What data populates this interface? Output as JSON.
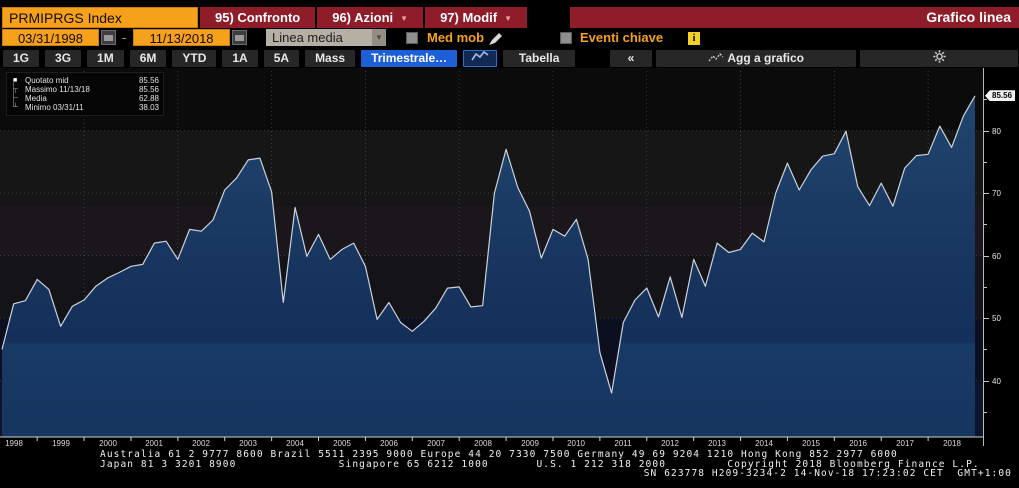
{
  "titlebar": {
    "security": "PRMIPRGS Index",
    "menu_buttons": [
      {
        "label": "95) Confronto",
        "caret": false
      },
      {
        "label": "96) Azioni",
        "caret": true
      },
      {
        "label": "97) Modif",
        "caret": true
      }
    ],
    "view_title": "Grafico linea"
  },
  "controls": {
    "date_from": "03/31/1998",
    "date_to": "11/13/2018",
    "separator": "-",
    "line_type_dropdown": "Linea media",
    "dropdown_caret": "▼",
    "med_mob_label": "Med mob",
    "eventi_label": "Eventi chiave",
    "info_glyph": "i"
  },
  "toolbar": {
    "period_tabs": [
      "1G",
      "3G",
      "1M",
      "6M",
      "YTD",
      "1A",
      "5A",
      "Mass"
    ],
    "frequency_tab": "Trimestrale…",
    "tabella_label": "Tabella",
    "collapse_label": "«",
    "agg_label": "Agg a grafico"
  },
  "legend": {
    "rows": [
      {
        "marker": "■",
        "label": "Quotato mid",
        "value": "85.56"
      },
      {
        "marker": "┬",
        "label": "Massimo 11/13/18",
        "value": "85.56"
      },
      {
        "marker": "─",
        "label": "Media",
        "value": "62.88"
      },
      {
        "marker": "┴",
        "label": "Minimo 03/31/11",
        "value": "38.03"
      }
    ]
  },
  "chart_data": {
    "type": "area",
    "title": "PRMIPRGS Index",
    "frequency": "quarterly",
    "start": "03/31/1998",
    "end": "11/13/2018",
    "values": [
      45.0,
      52.3,
      52.8,
      56.2,
      54.6,
      48.7,
      51.9,
      52.9,
      55.1,
      56.4,
      57.3,
      58.3,
      58.6,
      62.0,
      62.3,
      59.4,
      64.2,
      63.9,
      65.7,
      70.5,
      72.4,
      75.3,
      75.6,
      70.2,
      52.5,
      67.7,
      59.9,
      63.4,
      59.4,
      61.0,
      62.0,
      58.3,
      49.8,
      52.5,
      49.3,
      47.9,
      49.5,
      51.6,
      54.8,
      55.0,
      51.8,
      52.0,
      70.0,
      77.0,
      70.9,
      67.1,
      59.6,
      64.2,
      63.1,
      65.8,
      59.4,
      44.5,
      38.03,
      49.3,
      52.9,
      54.8,
      50.2,
      56.6,
      50.1,
      59.4,
      55.1,
      62.0,
      60.5,
      61.0,
      63.6,
      62.2,
      70.0,
      74.8,
      70.5,
      73.7,
      75.9,
      76.3,
      79.9,
      71.0,
      68.0,
      71.6,
      67.9,
      74.0,
      76.0,
      76.2,
      80.7,
      77.3,
      82.3,
      85.56
    ],
    "ylim": [
      31,
      90
    ],
    "yticks": [
      40,
      50,
      60,
      70,
      80
    ],
    "yticks_minor": [
      35,
      45,
      55,
      65,
      75,
      85
    ],
    "start_year": 1998,
    "x_year_labels": [
      "1998",
      "1999",
      "2000",
      "2001",
      "2002",
      "2003",
      "2004",
      "2005",
      "2006",
      "2007",
      "2008",
      "2009",
      "2010",
      "2011",
      "2012",
      "2013",
      "2014",
      "2015",
      "2016",
      "2017",
      "2018"
    ],
    "grid_years": [
      2000,
      2002,
      2004,
      2006,
      2008,
      2010,
      2012,
      2014,
      2016,
      2018
    ],
    "grid": true,
    "legend_position": "top-left",
    "stats": {
      "last": 85.56,
      "last_label": "85.56",
      "max": 85.56,
      "max_date": "11/13/18",
      "mean": 62.88,
      "min": 38.03,
      "min_date": "03/31/11"
    },
    "line_color": "#ccd2d9",
    "fill_top": "#21466f",
    "fill_bottom": "#16355f",
    "bands": [
      {
        "from": 80,
        "to": 92,
        "color": "#0b0b0b"
      },
      {
        "from": 68,
        "to": 80,
        "color": "#161616"
      },
      {
        "from": 60,
        "to": 68,
        "color": "#1b151c"
      },
      {
        "from": 50,
        "to": 60,
        "color": "#141418"
      },
      {
        "from": 40,
        "to": 50,
        "color": "#0b0f20"
      },
      {
        "from": 28,
        "to": 40,
        "color": "#0d142b"
      }
    ]
  },
  "footer": {
    "line1": "Australia 61 2 9777 8600 Brazil 5511 2395 9000 Europe 44 20 7330 7500 Germany 49 69 9204 1210 Hong Kong 852 2977 6000",
    "line2": "Japan 81 3 3201 8900               Singapore 65 6212 1000       U.S. 1 212 318 2000         Copyright 2018 Bloomberg Finance L.P.",
    "line3": "SN 623778 H209-3234-2 14-Nov-18 17:23:02 CET  GMT+1:00"
  }
}
